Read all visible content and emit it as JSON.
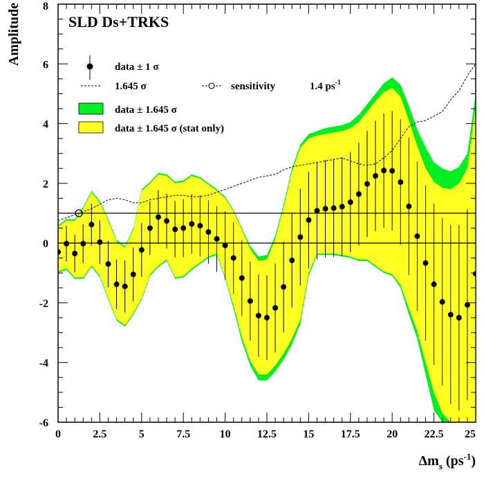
{
  "chart_data": {
    "type": "scatter",
    "title": "SLD Ds+TRKS",
    "xlabel_main": "Δm",
    "xlabel_sub": "s",
    "xlabel_unit_open": " (ps",
    "xlabel_unit_sup": "-1",
    "xlabel_unit_close": ")",
    "ylabel": "Amplitude",
    "xlim": [
      0,
      25
    ],
    "ylim": [
      -6,
      8
    ],
    "x_ticks": [
      "0",
      "2.5",
      "5",
      "7.5",
      "10",
      "12.5",
      "15",
      "17.5",
      "20",
      "22.5",
      "25"
    ],
    "y_ticks": [
      "-6",
      "-4",
      "-2",
      "0",
      "2",
      "4",
      "6",
      "8"
    ],
    "reference_lines": [
      0,
      1
    ],
    "legend": {
      "data_label": "data ± 1 σ",
      "line_label": "1.645 σ",
      "sensitivity_label": "sensitivity",
      "sensitivity_value": "1.4 ps",
      "sensitivity_unit_sup": "-1",
      "band_green_label": "data ± 1.645 σ",
      "band_yellow_label": "data ± 1.645 σ (stat only)"
    },
    "colors": {
      "band_total": "#00ee22",
      "band_stat": "#ffff22",
      "points": "#000000",
      "axis": "#000000"
    },
    "points": {
      "x": [
        0,
        0.5,
        1,
        1.5,
        2,
        2.5,
        3,
        3.5,
        4,
        4.5,
        5,
        5.5,
        6,
        6.5,
        7,
        7.5,
        8,
        8.5,
        9,
        9.5,
        10,
        10.5,
        11,
        11.5,
        12,
        12.5,
        13,
        13.5,
        14,
        14.5,
        15,
        15.5,
        16,
        16.5,
        17,
        17.5,
        18,
        18.5,
        19,
        19.5,
        20,
        20.5,
        21,
        21.5,
        22,
        22.5,
        23,
        23.5,
        24,
        24.5,
        25
      ],
      "y": [
        -0.3,
        -0.02,
        -0.35,
        -0.02,
        0.62,
        0.03,
        -0.7,
        -1.38,
        -1.45,
        -1.05,
        -0.23,
        0.5,
        0.87,
        0.74,
        0.46,
        0.5,
        0.64,
        0.58,
        0.37,
        0.14,
        -0.08,
        -0.5,
        -1.17,
        -1.94,
        -2.43,
        -2.5,
        -2.17,
        -1.47,
        -0.58,
        0.2,
        0.77,
        1.08,
        1.15,
        1.17,
        1.22,
        1.37,
        1.64,
        1.98,
        2.25,
        2.43,
        2.42,
        2.04,
        1.23,
        0.23,
        -0.67,
        -1.38,
        -1.97,
        -2.4,
        -2.5,
        -2.07,
        -1.03
      ],
      "err": [
        0.55,
        0.6,
        0.63,
        0.65,
        0.7,
        0.73,
        0.78,
        0.83,
        0.87,
        0.9,
        0.9,
        0.9,
        0.9,
        0.92,
        0.95,
        0.97,
        1.0,
        1.03,
        1.06,
        1.1,
        1.15,
        1.2,
        1.27,
        1.32,
        1.38,
        1.42,
        1.48,
        1.52,
        1.58,
        1.62,
        1.62,
        1.62,
        1.63,
        1.64,
        1.66,
        1.68,
        1.72,
        1.78,
        1.85,
        1.92,
        2.0,
        2.1,
        2.3,
        2.5,
        2.6,
        2.7,
        2.8,
        3.0,
        3.1,
        3.2,
        3.3
      ]
    },
    "band_total": {
      "x": [
        0,
        0.5,
        1,
        1.5,
        2,
        2.5,
        3,
        3.5,
        4,
        4.5,
        5,
        5.5,
        6,
        6.5,
        7,
        7.5,
        8,
        8.5,
        9,
        9.5,
        10,
        10.5,
        11,
        11.5,
        12,
        12.5,
        13,
        13.5,
        14,
        14.5,
        15,
        15.5,
        16,
        16.5,
        17,
        17.5,
        18,
        18.5,
        19,
        19.5,
        20,
        20.5,
        21,
        21.5,
        22,
        22.5,
        23,
        23.5,
        24,
        24.5,
        25
      ],
      "upper": [
        0.6,
        0.8,
        0.8,
        1.2,
        1.75,
        1.4,
        0.8,
        0.1,
        -0.1,
        0.5,
        1.8,
        2.05,
        2.35,
        2.3,
        2.05,
        2.1,
        2.3,
        2.2,
        2.0,
        1.8,
        1.55,
        1.1,
        0.5,
        -0.1,
        -0.45,
        -0.4,
        0.25,
        1.3,
        2.5,
        3.3,
        3.65,
        3.75,
        3.85,
        3.9,
        3.95,
        4.05,
        4.3,
        4.65,
        5.0,
        5.35,
        5.55,
        5.3,
        4.6,
        3.8,
        3.2,
        2.7,
        2.5,
        2.4,
        2.55,
        3.0,
        5.0
      ],
      "lower": [
        -1.0,
        -0.9,
        -1.2,
        -1.2,
        -0.8,
        -1.15,
        -1.9,
        -2.6,
        -2.8,
        -2.4,
        -1.9,
        -1.1,
        -0.8,
        -0.6,
        -1.2,
        -1.15,
        -0.9,
        -0.7,
        -0.5,
        -0.4,
        -1.2,
        -2.2,
        -3.3,
        -4.1,
        -4.6,
        -4.6,
        -4.3,
        -3.9,
        -3.4,
        -2.7,
        -1.1,
        -0.4,
        -0.4,
        -0.4,
        -0.45,
        -0.5,
        -0.6,
        -0.6,
        -0.8,
        -1.0,
        -1.1,
        -1.5,
        -2.4,
        -3.2,
        -4.4,
        -5.6,
        -6.0,
        -6.0,
        -6.0,
        -6.0,
        -6.0
      ]
    },
    "band_stat": {
      "x": [
        0,
        0.5,
        1,
        1.5,
        2,
        2.5,
        3,
        3.5,
        4,
        4.5,
        5,
        5.5,
        6,
        6.5,
        7,
        7.5,
        8,
        8.5,
        9,
        9.5,
        10,
        10.5,
        11,
        11.5,
        12,
        12.5,
        13,
        13.5,
        14,
        14.5,
        15,
        15.5,
        16,
        16.5,
        17,
        17.5,
        18,
        18.5,
        19,
        19.5,
        20,
        20.5,
        21,
        21.5,
        22,
        22.5,
        23,
        23.5,
        24,
        24.5,
        25
      ],
      "upper": [
        0.55,
        0.75,
        0.75,
        1.15,
        1.7,
        1.35,
        0.75,
        0.05,
        -0.15,
        0.45,
        1.75,
        2.0,
        2.3,
        2.25,
        2.0,
        2.05,
        2.25,
        2.15,
        1.95,
        1.75,
        1.5,
        1.05,
        0.45,
        -0.2,
        -0.6,
        -0.55,
        0.15,
        1.2,
        2.4,
        3.2,
        3.5,
        3.6,
        3.65,
        3.7,
        3.75,
        3.85,
        4.05,
        4.4,
        4.75,
        5.05,
        5.2,
        4.9,
        4.1,
        3.25,
        2.5,
        2.05,
        1.85,
        1.8,
        2.0,
        2.5,
        4.6
      ],
      "lower": [
        -0.95,
        -0.85,
        -1.15,
        -1.15,
        -0.75,
        -1.1,
        -1.85,
        -2.55,
        -2.75,
        -2.35,
        -1.85,
        -1.05,
        -0.75,
        -0.55,
        -1.15,
        -1.1,
        -0.85,
        -0.65,
        -0.45,
        -0.35,
        -1.15,
        -2.1,
        -3.15,
        -3.95,
        -4.4,
        -4.4,
        -4.1,
        -3.7,
        -3.2,
        -2.55,
        -1.0,
        -0.35,
        -0.35,
        -0.35,
        -0.4,
        -0.45,
        -0.55,
        -0.55,
        -0.75,
        -0.95,
        -1.05,
        -1.4,
        -2.2,
        -2.95,
        -4.0,
        -5.0,
        -5.7,
        -6.0,
        -6.0,
        -6.0,
        -6.0
      ]
    },
    "sensitivity_line": {
      "x": [
        0,
        0.5,
        1,
        1.5,
        2,
        2.5,
        3,
        3.5,
        4,
        4.5,
        5,
        5.5,
        6,
        6.5,
        7,
        7.5,
        8,
        8.5,
        9,
        9.5,
        10,
        10.5,
        11,
        11.5,
        12,
        12.5,
        13,
        13.5,
        14,
        14.5,
        15,
        15.5,
        16,
        16.5,
        17,
        17.5,
        18,
        18.5,
        19,
        19.5,
        20,
        20.5,
        21,
        21.5,
        22,
        22.5,
        23,
        23.5,
        24,
        24.5,
        25
      ],
      "y": [
        0.75,
        0.85,
        0.95,
        1.05,
        1.15,
        1.3,
        1.45,
        1.5,
        1.45,
        1.35,
        1.35,
        1.45,
        1.5,
        1.55,
        1.6,
        1.6,
        1.55,
        1.55,
        1.6,
        1.7,
        1.8,
        1.9,
        2.0,
        2.1,
        2.2,
        2.25,
        2.3,
        2.45,
        2.55,
        2.6,
        2.65,
        2.7,
        2.75,
        2.8,
        2.85,
        2.75,
        2.65,
        2.6,
        2.65,
        2.85,
        3.1,
        3.5,
        3.9,
        4.05,
        4.1,
        4.25,
        4.4,
        4.8,
        5.1,
        5.6,
        6.0
      ]
    }
  }
}
